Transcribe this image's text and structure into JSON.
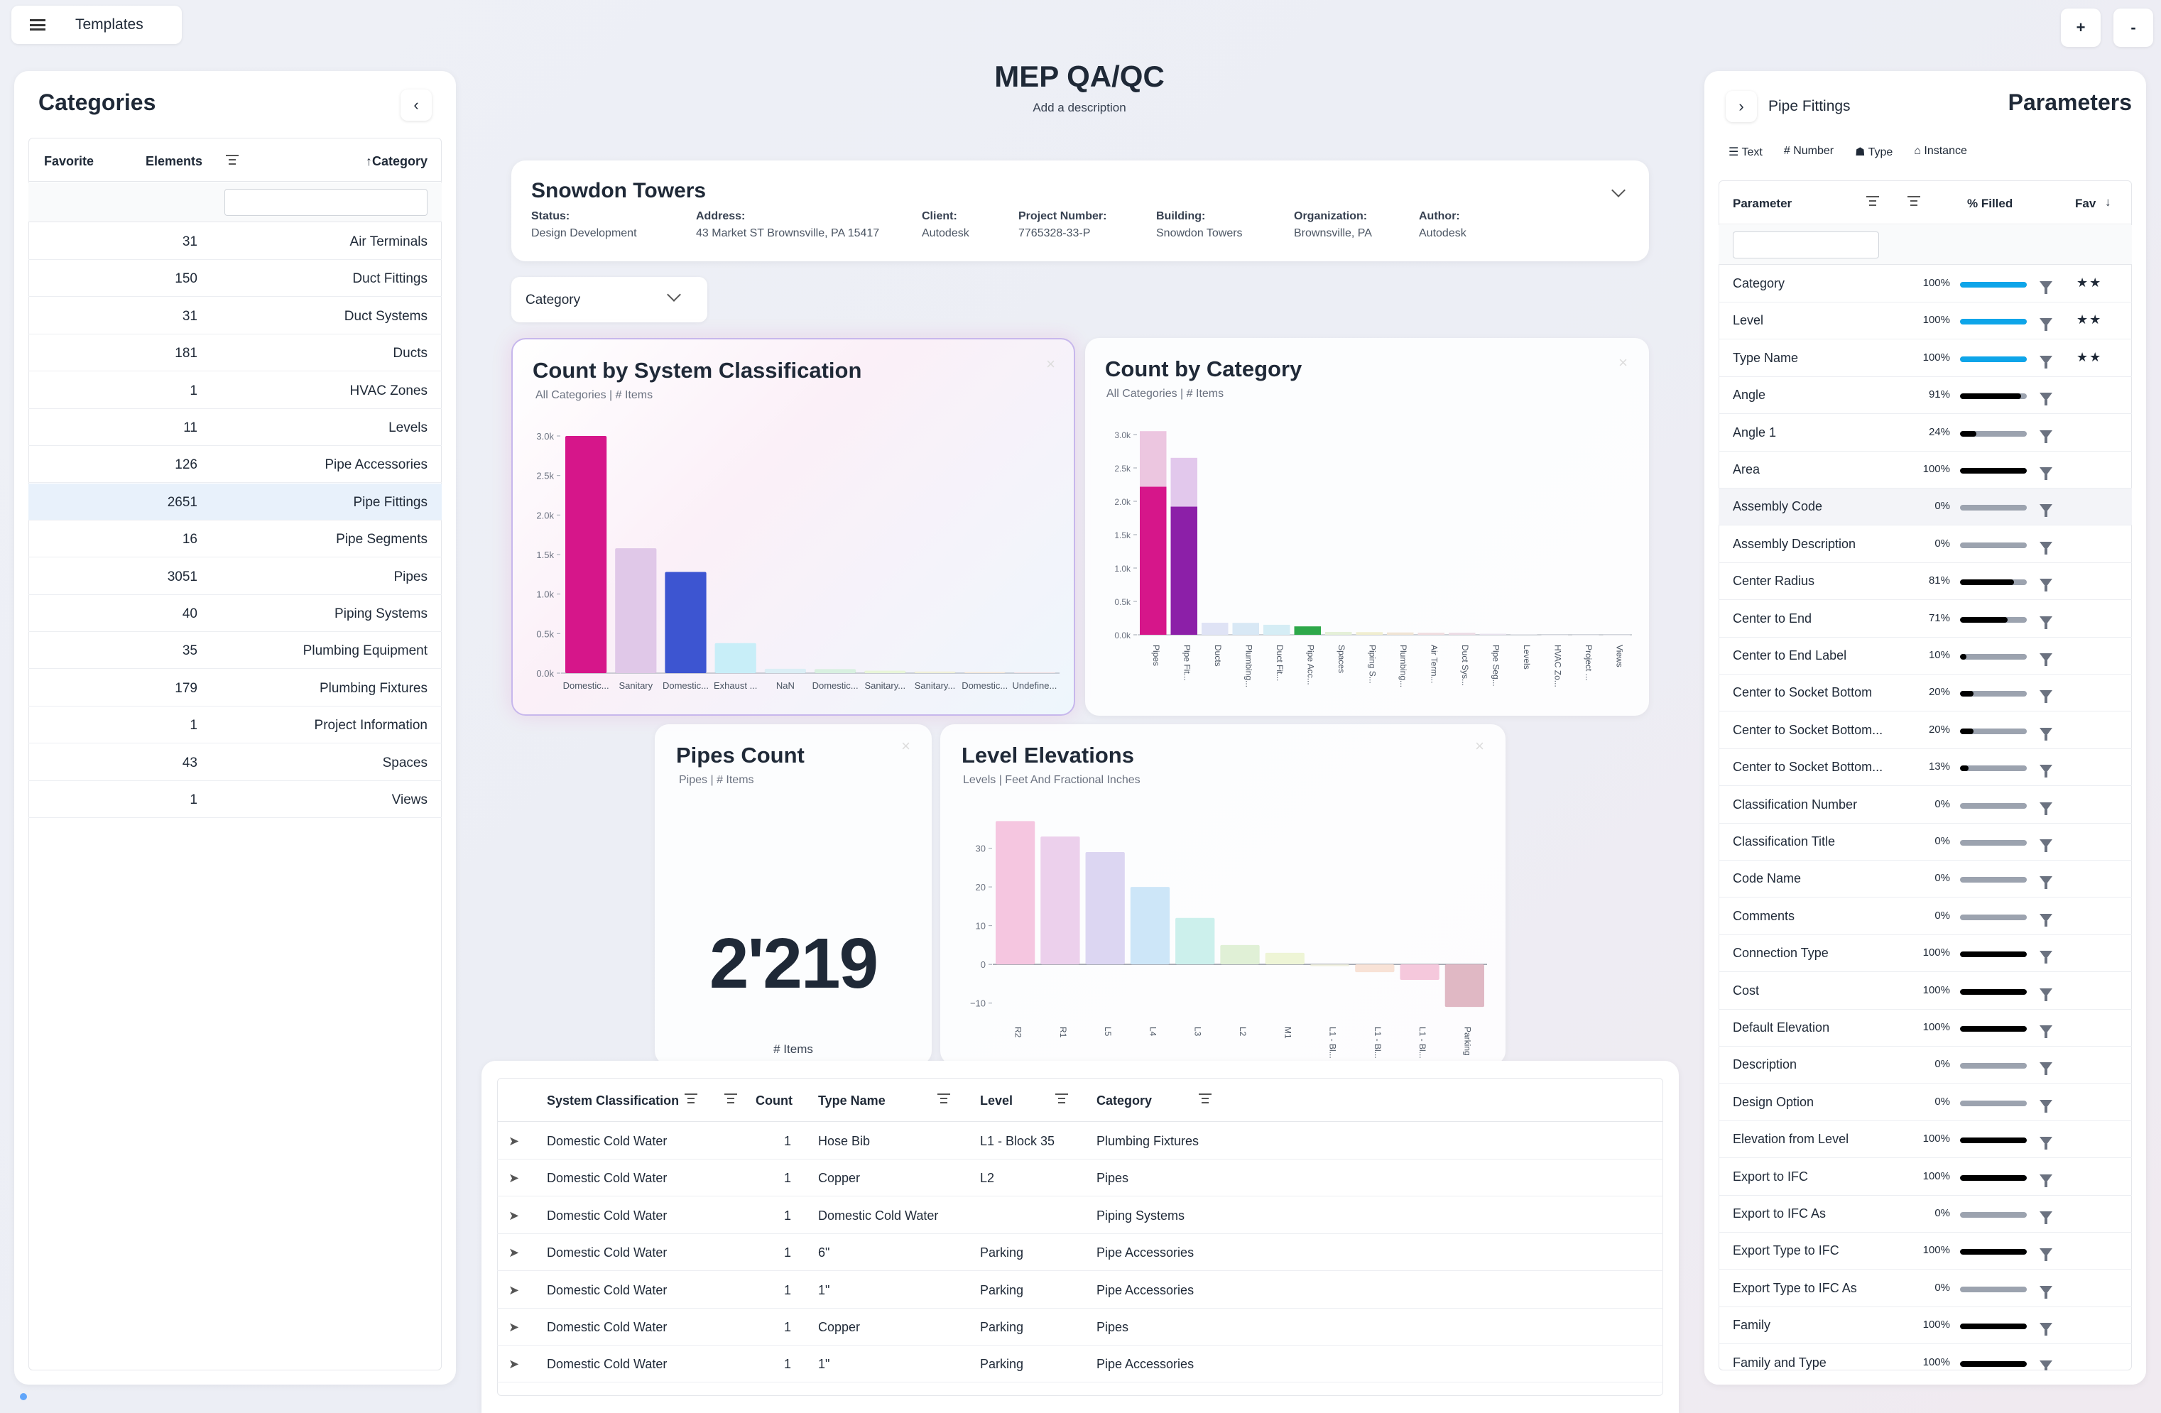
{
  "topbar": {
    "templates_label": "Templates",
    "plus_label": "+",
    "minus_label": "-"
  },
  "header": {
    "title": "MEP QA/QC",
    "description": "Add a description"
  },
  "categories": {
    "title": "Categories",
    "columns": {
      "favorite": "Favorite",
      "elements": "Elements",
      "category": "↑Category"
    },
    "rows": [
      {
        "count": "31",
        "name": "Air Terminals"
      },
      {
        "count": "150",
        "name": "Duct Fittings"
      },
      {
        "count": "31",
        "name": "Duct Systems"
      },
      {
        "count": "181",
        "name": "Ducts"
      },
      {
        "count": "1",
        "name": "HVAC Zones"
      },
      {
        "count": "11",
        "name": "Levels"
      },
      {
        "count": "126",
        "name": "Pipe Accessories"
      },
      {
        "count": "2651",
        "name": "Pipe Fittings"
      },
      {
        "count": "16",
        "name": "Pipe Segments"
      },
      {
        "count": "3051",
        "name": "Pipes"
      },
      {
        "count": "40",
        "name": "Piping Systems"
      },
      {
        "count": "35",
        "name": "Plumbing Equipment"
      },
      {
        "count": "179",
        "name": "Plumbing Fixtures"
      },
      {
        "count": "1",
        "name": "Project Information"
      },
      {
        "count": "43",
        "name": "Spaces"
      },
      {
        "count": "1",
        "name": "Views"
      }
    ]
  },
  "project": {
    "name": "Snowdon Towers",
    "fields": [
      {
        "label": "Status:",
        "value": "Design Development"
      },
      {
        "label": "Address:",
        "value": "43 Market ST Brownsville, PA 15417"
      },
      {
        "label": "Client:",
        "value": "Autodesk"
      },
      {
        "label": "Project Number:",
        "value": "7765328-33-P"
      },
      {
        "label": "Building:",
        "value": "Snowdon Towers"
      },
      {
        "label": "Organization:",
        "value": "Brownsville, PA"
      },
      {
        "label": "Author:",
        "value": "Autodesk"
      }
    ]
  },
  "group_select": {
    "value": "Category"
  },
  "charts": {
    "system": {
      "title": "Count by System Classification",
      "subtitle": "All Categories | # Items"
    },
    "category": {
      "title": "Count by Category",
      "subtitle": "All Categories | # Items"
    },
    "pipes": {
      "title": "Pipes Count",
      "subtitle": "Pipes | # Items",
      "value": "2'219",
      "unit": "# Items"
    },
    "levels": {
      "title": "Level Elevations",
      "subtitle": "Levels | Feet And Fractional Inches"
    }
  },
  "chart_data": [
    {
      "type": "bar",
      "title": "Count by System Classification",
      "subtitle": "All Categories | # Items",
      "categories": [
        "Domestic...",
        "Sanitary",
        "Domestic...",
        "Exhaust ...",
        "NaN",
        "Domestic...",
        "Sanitary...",
        "Sanitary...",
        "Domestic...",
        "Undefine..."
      ],
      "values": [
        3000,
        1580,
        1280,
        380,
        55,
        50,
        30,
        20,
        15,
        10
      ],
      "colors": [
        "#d6168a",
        "#e0c8e8",
        "#3d55d1",
        "#c8eef8",
        "#dbeef5",
        "#d8f0e0",
        "#e8f5d8",
        "#f0f0d8",
        "#f5e8d8",
        "#f0dde0"
      ],
      "ylim": [
        0,
        3000
      ],
      "yticks": [
        "0.0k",
        "0.5k",
        "1.0k",
        "1.5k",
        "2.0k",
        "2.5k",
        "3.0k"
      ]
    },
    {
      "type": "bar",
      "title": "Count by Category",
      "subtitle": "All Categories | # Items",
      "categories": [
        "Pipes",
        "Pipe Fit...",
        "Ducts",
        "Plumbing...",
        "Duct Fit...",
        "Pipe Acc...",
        "Spaces",
        "Piping S...",
        "Plumbing...",
        "Air Term...",
        "Duct Sys...",
        "Pipe Seg...",
        "Levels",
        "HVAC Zo...",
        "Project ...",
        "Views"
      ],
      "series": [
        {
          "values": [
            2219,
            1920,
            181,
            179,
            150,
            126,
            43,
            40,
            35,
            31,
            31,
            16,
            11,
            1,
            1,
            1
          ]
        },
        {
          "values": [
            832,
            731,
            0,
            0,
            0,
            0,
            0,
            0,
            0,
            0,
            0,
            0,
            0,
            0,
            0,
            0
          ]
        }
      ],
      "colors": [
        "#d6168a",
        "#8c1fa8",
        "#dfe3f5",
        "#d8e8f5",
        "#d5edf5",
        "#2ea84a",
        "#e5f0d8",
        "#f0eed0",
        "#f0e5d5",
        "#f0dde0",
        "#ecdce5",
        "#e8e2ee",
        "#e5e5ea",
        "#e5e5ea",
        "#e5e5ea",
        "#e5e5ea"
      ],
      "light_colors": [
        "#ecc6e0",
        "#e2c8ec"
      ],
      "ylim": [
        0,
        3000
      ],
      "yticks": [
        "0.0k",
        "0.5k",
        "1.0k",
        "1.5k",
        "2.0k",
        "2.5k",
        "3.0k"
      ]
    },
    {
      "type": "bar",
      "title": "Level Elevations",
      "subtitle": "Levels | Feet And Fractional Inches",
      "categories": [
        "R2",
        "R1",
        "L5",
        "L4",
        "L3",
        "L2",
        "M1",
        "L1 - Bl...",
        "L1 - Bl...",
        "L1 - Bl...",
        "Parking"
      ],
      "values": [
        37,
        33,
        29,
        20,
        12,
        5,
        3,
        -0.5,
        -2,
        -4,
        -11
      ],
      "colors": [
        "#f5c6e0",
        "#ecd0ec",
        "#dcd6f2",
        "#cde6f8",
        "#ccf0ec",
        "#e0f0d6",
        "#eef5d6",
        "#f0f0e0",
        "#f8e2d6",
        "#f5c8dc",
        "#e0b8c4"
      ],
      "ylim": [
        -15,
        40
      ],
      "yticks": [
        "−10",
        "0",
        "10",
        "20",
        "30"
      ]
    }
  ],
  "table": {
    "columns": [
      "System Classification",
      "Count",
      "Type Name",
      "Level",
      "Category"
    ],
    "rows": [
      {
        "system": "Domestic Cold Water",
        "count": "1",
        "type": "Hose Bib",
        "level": "L1 - Block 35",
        "category": "Plumbing Fixtures"
      },
      {
        "system": "Domestic Cold Water",
        "count": "1",
        "type": "Copper",
        "level": "L2",
        "category": "Pipes"
      },
      {
        "system": "Domestic Cold Water",
        "count": "1",
        "type": "Domestic Cold Water",
        "level": "",
        "category": "Piping Systems"
      },
      {
        "system": "Domestic Cold Water",
        "count": "1",
        "type": "6\"",
        "level": "Parking",
        "category": "Pipe Accessories"
      },
      {
        "system": "Domestic Cold Water",
        "count": "1",
        "type": "1\"",
        "level": "Parking",
        "category": "Pipe Accessories"
      },
      {
        "system": "Domestic Cold Water",
        "count": "1",
        "type": "Copper",
        "level": "Parking",
        "category": "Pipes"
      },
      {
        "system": "Domestic Cold Water",
        "count": "1",
        "type": "1\"",
        "level": "Parking",
        "category": "Pipe Accessories"
      }
    ]
  },
  "parameters": {
    "title": "Parameters",
    "selected_category": "Pipe Fittings",
    "filters": [
      "Text",
      "Number",
      "Type",
      "Instance"
    ],
    "columns": {
      "parameter": "Parameter",
      "filled": "% Filled",
      "fav": "Fav"
    },
    "rows": [
      {
        "name": "Category",
        "pct": "100%",
        "fill": 1.0,
        "color": "#0ea5e9",
        "fav": "★★"
      },
      {
        "name": "Level",
        "pct": "100%",
        "fill": 1.0,
        "color": "#0ea5e9",
        "fav": "★★"
      },
      {
        "name": "Type Name",
        "pct": "100%",
        "fill": 1.0,
        "color": "#0ea5e9",
        "fav": "★★"
      },
      {
        "name": "Angle",
        "pct": "91%",
        "fill": 0.91,
        "color": "#000000",
        "fav": ""
      },
      {
        "name": "Angle 1",
        "pct": "24%",
        "fill": 0.24,
        "color": "#000000",
        "fav": ""
      },
      {
        "name": "Area",
        "pct": "100%",
        "fill": 1.0,
        "color": "#000000",
        "fav": ""
      },
      {
        "name": "Assembly Code",
        "pct": "0%",
        "fill": 0,
        "color": "#000000",
        "fav": ""
      },
      {
        "name": "Assembly Description",
        "pct": "0%",
        "fill": 0,
        "color": "#000000",
        "fav": ""
      },
      {
        "name": "Center Radius",
        "pct": "81%",
        "fill": 0.81,
        "color": "#000000",
        "fav": ""
      },
      {
        "name": "Center to End",
        "pct": "71%",
        "fill": 0.71,
        "color": "#000000",
        "fav": ""
      },
      {
        "name": "Center to End Label",
        "pct": "10%",
        "fill": 0.1,
        "color": "#000000",
        "fav": ""
      },
      {
        "name": "Center to Socket Bottom",
        "pct": "20%",
        "fill": 0.2,
        "color": "#000000",
        "fav": ""
      },
      {
        "name": "Center to Socket Bottom...",
        "pct": "20%",
        "fill": 0.2,
        "color": "#000000",
        "fav": ""
      },
      {
        "name": "Center to Socket Bottom...",
        "pct": "13%",
        "fill": 0.13,
        "color": "#000000",
        "fav": ""
      },
      {
        "name": "Classification Number",
        "pct": "0%",
        "fill": 0,
        "color": "#000000",
        "fav": ""
      },
      {
        "name": "Classification Title",
        "pct": "0%",
        "fill": 0,
        "color": "#000000",
        "fav": ""
      },
      {
        "name": "Code Name",
        "pct": "0%",
        "fill": 0,
        "color": "#000000",
        "fav": ""
      },
      {
        "name": "Comments",
        "pct": "0%",
        "fill": 0,
        "color": "#000000",
        "fav": ""
      },
      {
        "name": "Connection Type",
        "pct": "100%",
        "fill": 1.0,
        "color": "#000000",
        "fav": ""
      },
      {
        "name": "Cost",
        "pct": "100%",
        "fill": 1.0,
        "color": "#000000",
        "fav": ""
      },
      {
        "name": "Default Elevation",
        "pct": "100%",
        "fill": 1.0,
        "color": "#000000",
        "fav": ""
      },
      {
        "name": "Description",
        "pct": "0%",
        "fill": 0,
        "color": "#000000",
        "fav": ""
      },
      {
        "name": "Design Option",
        "pct": "0%",
        "fill": 0,
        "color": "#000000",
        "fav": ""
      },
      {
        "name": "Elevation from Level",
        "pct": "100%",
        "fill": 1.0,
        "color": "#000000",
        "fav": ""
      },
      {
        "name": "Export to IFC",
        "pct": "100%",
        "fill": 1.0,
        "color": "#000000",
        "fav": ""
      },
      {
        "name": "Export to IFC As",
        "pct": "0%",
        "fill": 0,
        "color": "#000000",
        "fav": ""
      },
      {
        "name": "Export Type to IFC",
        "pct": "100%",
        "fill": 1.0,
        "color": "#000000",
        "fav": ""
      },
      {
        "name": "Export Type to IFC As",
        "pct": "0%",
        "fill": 0,
        "color": "#000000",
        "fav": ""
      },
      {
        "name": "Family",
        "pct": "100%",
        "fill": 1.0,
        "color": "#000000",
        "fav": ""
      },
      {
        "name": "Family and Type",
        "pct": "100%",
        "fill": 1.0,
        "color": "#000000",
        "fav": ""
      }
    ]
  }
}
